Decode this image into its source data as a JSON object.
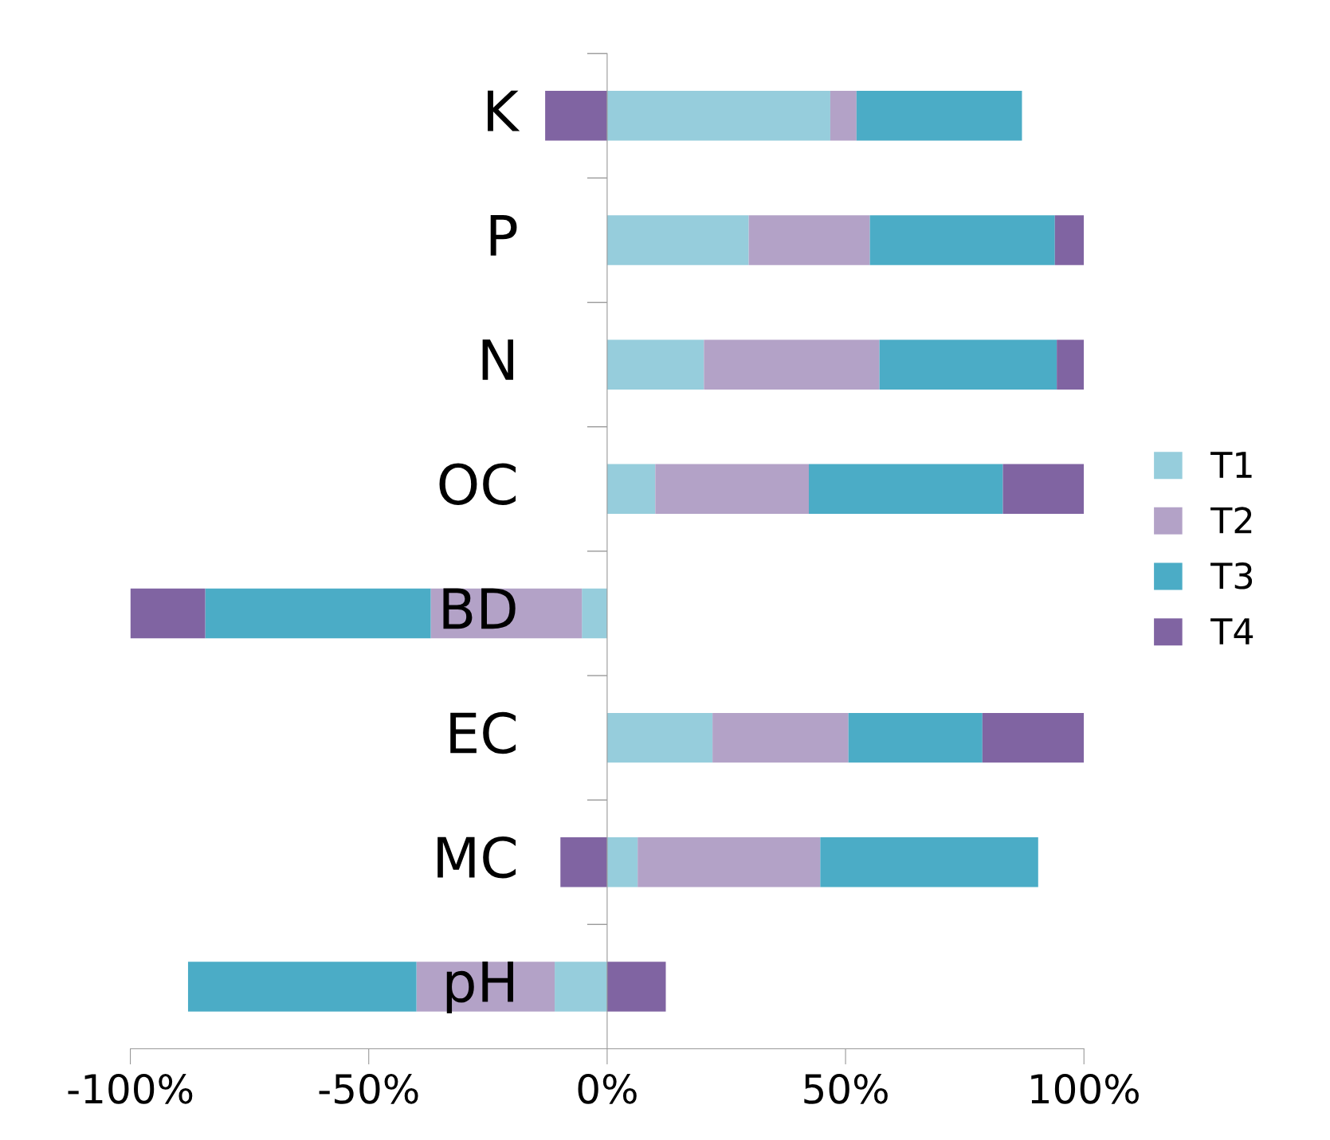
{
  "chart_data": {
    "type": "bar",
    "orientation": "horizontal",
    "stacked": true,
    "categories": [
      "K",
      "P",
      "N",
      "OC",
      "BD",
      "EC",
      "MC",
      "pH"
    ],
    "series": [
      {
        "name": "T1",
        "color": "#96cddc",
        "values": [
          46.8,
          29.7,
          20.3,
          10.1,
          -5.3,
          22.1,
          6.4,
          -11.0
        ]
      },
      {
        "name": "T2",
        "color": "#b3a2c7",
        "values": [
          5.5,
          25.4,
          36.8,
          32.2,
          -31.7,
          28.5,
          38.3,
          -29.0
        ]
      },
      {
        "name": "T3",
        "color": "#4bacc6",
        "values": [
          34.7,
          38.8,
          37.2,
          40.7,
          -47.3,
          28.1,
          45.7,
          -47.9
        ]
      },
      {
        "name": "T4",
        "color": "#8064a2",
        "values": [
          -13.0,
          6.1,
          5.7,
          17.0,
          -15.7,
          21.3,
          -9.8,
          12.3
        ]
      }
    ],
    "xlim": [
      -100,
      100
    ],
    "xticks": [
      {
        "value": -100,
        "label": "-100%"
      },
      {
        "value": -50,
        "label": "-50%"
      },
      {
        "value": 0,
        "label": "0%"
      },
      {
        "value": 50,
        "label": "50%"
      },
      {
        "value": 100,
        "label": "100%"
      }
    ],
    "grid": false,
    "legend": "right"
  }
}
